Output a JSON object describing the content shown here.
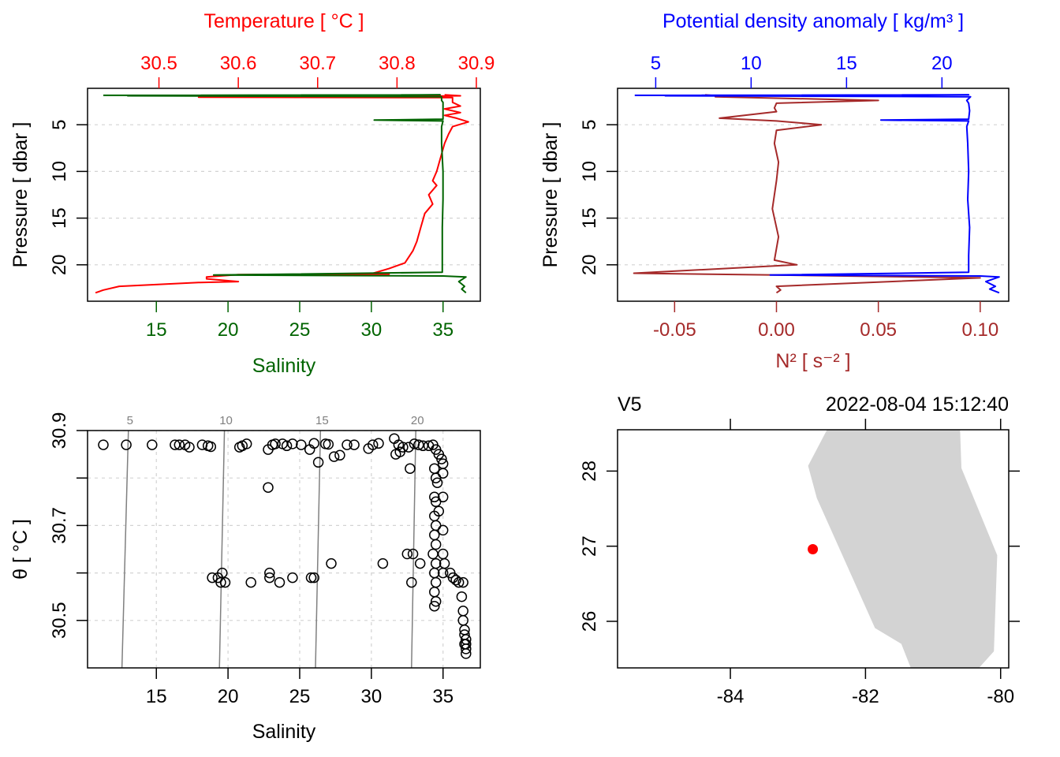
{
  "colors": {
    "temperature": "#ff0000",
    "salinity": "#006400",
    "density": "#0000ff",
    "n2": "#a52a2a",
    "grid": "#d3d3d3",
    "isopycnal": "#808080",
    "land": "#d3d3d3",
    "station": "#ff0000",
    "frame": "#000000"
  },
  "chart_data": [
    {
      "id": "profile-TS",
      "type": "line",
      "title": "",
      "top_axis": {
        "label": "Temperature [ °C ]",
        "ticks": [
          "30.5",
          "30.6",
          "30.7",
          "30.8",
          "30.9"
        ],
        "tick_values": [
          30.5,
          30.6,
          30.7,
          30.8,
          30.9
        ],
        "range": [
          30.41,
          30.905
        ]
      },
      "bottom_axis": {
        "label": "Salinity",
        "ticks": [
          "15",
          "20",
          "25",
          "30",
          "35"
        ],
        "tick_values": [
          15,
          20,
          25,
          30,
          35
        ],
        "range": [
          10.2,
          37.6
        ]
      },
      "left_axis": {
        "label": "Pressure [ dbar ]",
        "ticks": [
          "5",
          "10",
          "15",
          "20"
        ],
        "tick_values": [
          5,
          10,
          15,
          20
        ],
        "range": [
          1.1,
          23.9
        ],
        "reversed": true
      },
      "grid": true,
      "series": [
        {
          "name": "Temperature",
          "axis": "top",
          "points": [
            [
              30.86,
              1.8
            ],
            [
              30.88,
              1.9
            ],
            [
              30.75,
              2.0
            ],
            [
              30.55,
              2.05
            ],
            [
              30.87,
              2.1
            ],
            [
              30.87,
              2.6
            ],
            [
              30.88,
              3.0
            ],
            [
              30.86,
              3.3
            ],
            [
              30.88,
              3.7
            ],
            [
              30.86,
              4.0
            ],
            [
              30.875,
              4.3
            ],
            [
              30.89,
              4.7
            ],
            [
              30.87,
              5.2
            ],
            [
              30.865,
              6.0
            ],
            [
              30.86,
              7.0
            ],
            [
              30.855,
              8.5
            ],
            [
              30.85,
              10.0
            ],
            [
              30.845,
              11.0
            ],
            [
              30.85,
              11.5
            ],
            [
              30.84,
              12.5
            ],
            [
              30.845,
              13.5
            ],
            [
              30.835,
              14.5
            ],
            [
              30.83,
              16.0
            ],
            [
              30.825,
              17.5
            ],
            [
              30.82,
              18.5
            ],
            [
              30.81,
              19.8
            ],
            [
              30.79,
              20.4
            ],
            [
              30.77,
              20.9
            ],
            [
              30.79,
              21.0
            ],
            [
              30.6,
              21.05
            ],
            [
              30.56,
              21.3
            ],
            [
              30.56,
              21.5
            ],
            [
              30.6,
              21.8
            ],
            [
              30.55,
              21.9
            ],
            [
              30.45,
              22.3
            ],
            [
              30.43,
              22.7
            ],
            [
              30.42,
              23.0
            ]
          ]
        },
        {
          "name": "Salinity",
          "axis": "bottom",
          "points": [
            [
              11.3,
              1.85
            ],
            [
              34.8,
              1.8
            ],
            [
              13.0,
              1.9
            ],
            [
              34.9,
              2.0
            ],
            [
              34.9,
              2.4
            ],
            [
              35.0,
              2.6
            ],
            [
              35.0,
              3.5
            ],
            [
              35.0,
              4.4
            ],
            [
              30.2,
              4.5
            ],
            [
              35.0,
              4.6
            ],
            [
              34.9,
              5.2
            ],
            [
              34.9,
              7.0
            ],
            [
              35.0,
              10.0
            ],
            [
              35.0,
              13.0
            ],
            [
              34.95,
              16.0
            ],
            [
              34.95,
              19.0
            ],
            [
              34.95,
              20.8
            ],
            [
              19.0,
              21.1
            ],
            [
              35.0,
              21.2
            ],
            [
              36.6,
              21.3
            ],
            [
              36.1,
              21.8
            ],
            [
              36.5,
              22.3
            ],
            [
              36.3,
              22.6
            ],
            [
              36.6,
              23.0
            ]
          ]
        }
      ]
    },
    {
      "id": "profile-density-N2",
      "type": "line",
      "top_axis": {
        "label": "Potential density anomaly [ kg/m³ ]",
        "ticks": [
          "5",
          "10",
          "15",
          "20"
        ],
        "tick_values": [
          5,
          10,
          15,
          20
        ],
        "range": [
          3.0,
          23.5
        ]
      },
      "bottom_axis": {
        "label": "N² [ s⁻² ]",
        "ticks": [
          "-0.05",
          "0.00",
          "0.05",
          "0.10"
        ],
        "tick_values": [
          -0.05,
          0.0,
          0.05,
          0.1
        ],
        "range": [
          -0.078,
          0.114
        ]
      },
      "left_axis": {
        "label": "Pressure [ dbar ]",
        "ticks": [
          "5",
          "10",
          "15",
          "20"
        ],
        "tick_values": [
          5,
          10,
          15,
          20
        ],
        "range": [
          1.1,
          23.9
        ],
        "reversed": true
      },
      "grid": true,
      "series": [
        {
          "name": "Potential density anomaly",
          "axis": "top",
          "points": [
            [
              3.9,
              1.85
            ],
            [
              21.4,
              1.8
            ],
            [
              5.5,
              1.9
            ],
            [
              21.5,
              2.0
            ],
            [
              21.3,
              2.4
            ],
            [
              21.4,
              2.7
            ],
            [
              21.45,
              3.5
            ],
            [
              21.4,
              4.4
            ],
            [
              16.8,
              4.5
            ],
            [
              21.4,
              4.6
            ],
            [
              21.3,
              5.2
            ],
            [
              21.35,
              7.0
            ],
            [
              21.4,
              10.0
            ],
            [
              21.35,
              13.0
            ],
            [
              21.45,
              16.0
            ],
            [
              21.4,
              19.0
            ],
            [
              21.4,
              20.8
            ],
            [
              11.0,
              21.1
            ],
            [
              22.0,
              21.2
            ],
            [
              23.0,
              21.3
            ],
            [
              22.3,
              21.8
            ],
            [
              22.8,
              22.3
            ],
            [
              22.5,
              22.6
            ],
            [
              23.0,
              23.0
            ]
          ]
        },
        {
          "name": "N2",
          "axis": "bottom",
          "points": [
            [
              -0.035,
              1.8
            ],
            [
              -0.03,
              1.9
            ],
            [
              -0.03,
              2.0
            ],
            [
              0.05,
              2.4
            ],
            [
              0.0,
              2.7
            ],
            [
              -0.001,
              3.2
            ],
            [
              0.0,
              3.6
            ],
            [
              -0.028,
              4.3
            ],
            [
              0.0,
              4.6
            ],
            [
              0.022,
              5.0
            ],
            [
              0.0,
              5.6
            ],
            [
              -0.001,
              7.0
            ],
            [
              0.001,
              9.0
            ],
            [
              0.0,
              11.0
            ],
            [
              -0.002,
              14.0
            ],
            [
              0.001,
              17.0
            ],
            [
              -0.001,
              19.5
            ],
            [
              0.01,
              20.0
            ],
            [
              -0.07,
              20.9
            ],
            [
              0.0,
              21.1
            ],
            [
              0.1,
              21.4
            ],
            [
              0.0,
              22.3
            ],
            [
              0.002,
              22.7
            ],
            [
              0.0,
              23.0
            ]
          ]
        }
      ]
    },
    {
      "id": "TS-diagram",
      "type": "scatter",
      "bottom_axis": {
        "label": "Salinity",
        "ticks": [
          "15",
          "20",
          "25",
          "30",
          "35"
        ],
        "tick_values": [
          15,
          20,
          25,
          30,
          35
        ],
        "range": [
          10.2,
          37.6
        ]
      },
      "left_axis": {
        "label": "θ [ °C ]",
        "ticks": [
          "30.9",
          "",
          "30.7",
          "",
          "30.5"
        ],
        "tick_values": [
          30.9,
          30.8,
          30.7,
          30.6,
          30.5
        ],
        "range": [
          30.4,
          30.9
        ]
      },
      "isopycnals": {
        "labels": [
          "5",
          "10",
          "15",
          "20"
        ],
        "values": [
          5,
          10,
          15,
          20
        ],
        "color": "#808080"
      },
      "grid": true,
      "points": [
        [
          11.3,
          30.87
        ],
        [
          12.9,
          30.87
        ],
        [
          14.7,
          30.87
        ],
        [
          16.3,
          30.87
        ],
        [
          16.6,
          30.87
        ],
        [
          17.0,
          30.87
        ],
        [
          17.3,
          30.865
        ],
        [
          18.2,
          30.87
        ],
        [
          18.6,
          30.868
        ],
        [
          18.8,
          30.866
        ],
        [
          20.8,
          30.865
        ],
        [
          21.0,
          30.868
        ],
        [
          21.3,
          30.872
        ],
        [
          22.8,
          30.86
        ],
        [
          23.1,
          30.87
        ],
        [
          23.3,
          30.872
        ],
        [
          23.8,
          30.872
        ],
        [
          24.1,
          30.868
        ],
        [
          24.5,
          30.872
        ],
        [
          25.1,
          30.87
        ],
        [
          25.7,
          30.86
        ],
        [
          26.0,
          30.873
        ],
        [
          26.3,
          30.833
        ],
        [
          26.8,
          30.872
        ],
        [
          27.0,
          30.871
        ],
        [
          27.4,
          30.845
        ],
        [
          27.8,
          30.848
        ],
        [
          28.3,
          30.87
        ],
        [
          28.8,
          30.87
        ],
        [
          29.8,
          30.862
        ],
        [
          30.1,
          30.87
        ],
        [
          30.5,
          30.873
        ],
        [
          31.6,
          30.883
        ],
        [
          31.9,
          30.87
        ],
        [
          32.2,
          30.865
        ],
        [
          32.6,
          30.865
        ],
        [
          32.7,
          30.82
        ],
        [
          33.0,
          30.872
        ],
        [
          33.3,
          30.87
        ],
        [
          33.6,
          30.868
        ],
        [
          34.0,
          30.868
        ],
        [
          31.7,
          30.85
        ],
        [
          32.0,
          30.855
        ],
        [
          22.8,
          30.78
        ],
        [
          34.3,
          30.87
        ],
        [
          34.5,
          30.86
        ],
        [
          34.7,
          30.85
        ],
        [
          34.9,
          30.84
        ],
        [
          35.0,
          30.83
        ],
        [
          34.4,
          30.82
        ],
        [
          34.5,
          30.8
        ],
        [
          34.6,
          30.79
        ],
        [
          34.4,
          30.76
        ],
        [
          34.5,
          30.75
        ],
        [
          34.7,
          30.73
        ],
        [
          35.0,
          30.81
        ],
        [
          35.0,
          30.76
        ],
        [
          34.4,
          30.72
        ],
        [
          34.5,
          30.7
        ],
        [
          34.4,
          30.68
        ],
        [
          34.5,
          30.66
        ],
        [
          34.3,
          30.64
        ],
        [
          34.5,
          30.62
        ],
        [
          34.4,
          30.6
        ],
        [
          34.5,
          30.58
        ],
        [
          34.4,
          30.56
        ],
        [
          34.5,
          30.54
        ],
        [
          34.4,
          30.53
        ],
        [
          35.0,
          30.69
        ],
        [
          35.0,
          30.64
        ],
        [
          35.1,
          30.62
        ],
        [
          35.0,
          30.6
        ],
        [
          35.5,
          30.6
        ],
        [
          35.7,
          30.59
        ],
        [
          35.9,
          30.585
        ],
        [
          36.1,
          30.58
        ],
        [
          36.4,
          30.58
        ],
        [
          36.3,
          30.55
        ],
        [
          36.4,
          30.52
        ],
        [
          36.4,
          30.5
        ],
        [
          36.5,
          30.48
        ],
        [
          36.5,
          30.47
        ],
        [
          36.6,
          30.46
        ],
        [
          36.6,
          30.45
        ],
        [
          36.6,
          30.44
        ],
        [
          36.6,
          30.43
        ],
        [
          36.5,
          30.45
        ],
        [
          18.9,
          30.59
        ],
        [
          19.3,
          30.59
        ],
        [
          19.5,
          30.58
        ],
        [
          19.8,
          30.58
        ],
        [
          21.6,
          30.58
        ],
        [
          22.9,
          30.6
        ],
        [
          22.9,
          30.59
        ],
        [
          23.6,
          30.58
        ],
        [
          24.5,
          30.59
        ],
        [
          25.8,
          30.59
        ],
        [
          26.0,
          30.59
        ],
        [
          27.2,
          30.62
        ],
        [
          30.8,
          30.62
        ],
        [
          32.5,
          30.64
        ],
        [
          32.9,
          30.64
        ],
        [
          33.4,
          30.62
        ],
        [
          32.8,
          30.58
        ],
        [
          19.6,
          30.6
        ]
      ]
    },
    {
      "id": "station-map",
      "type": "scatter",
      "title_left": "V5",
      "title_right": "2022-08-04 15:12:40",
      "bottom_axis": {
        "label": "",
        "ticks": [
          "-84",
          "-82",
          "-80"
        ],
        "tick_values": [
          -84,
          -82,
          -80
        ],
        "range": [
          -85.67,
          -79.88
        ]
      },
      "left_axis": {
        "label": "",
        "ticks": [
          "26",
          "27",
          "28"
        ],
        "tick_values": [
          26,
          27,
          28
        ],
        "range": [
          25.38,
          28.55
        ]
      },
      "station": {
        "lon": -82.78,
        "lat": 26.96
      },
      "land_polygon": [
        [
          -82.57,
          28.55
        ],
        [
          -80.6,
          28.55
        ],
        [
          -80.58,
          28.04
        ],
        [
          -80.05,
          26.88
        ],
        [
          -80.1,
          25.6
        ],
        [
          -80.32,
          25.38
        ],
        [
          -81.33,
          25.38
        ],
        [
          -81.47,
          25.7
        ],
        [
          -81.86,
          25.91
        ],
        [
          -82.72,
          27.64
        ],
        [
          -82.85,
          28.07
        ]
      ]
    }
  ]
}
